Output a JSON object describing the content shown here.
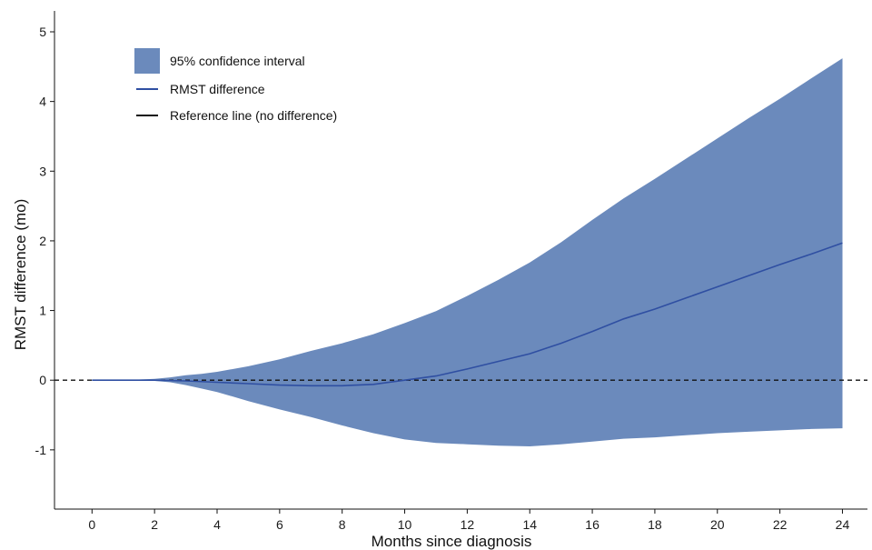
{
  "chart_data": {
    "type": "area",
    "xlabel": "Months since diagnosis",
    "ylabel": "RMST difference (mo)",
    "xlim": [
      -1.2,
      24.8
    ],
    "ylim": [
      -1.85,
      5.3
    ],
    "xticks": [
      0,
      2,
      4,
      6,
      8,
      10,
      12,
      14,
      16,
      18,
      20,
      22,
      24
    ],
    "yticks": [
      -1,
      0,
      1,
      2,
      3,
      4,
      5
    ],
    "grid": false,
    "legend_position": "top-left",
    "legend": [
      {
        "label": "95% confidence interval",
        "kind": "fill"
      },
      {
        "label": "RMST difference",
        "kind": "line"
      },
      {
        "label": "Reference line (no difference)",
        "kind": "dashed"
      }
    ],
    "colors": {
      "ci_fill": "#6b8abc",
      "rmst_line": "#2f4fa2",
      "reference": "#111111"
    },
    "reference_y": 0,
    "series": [
      {
        "name": "95% confidence interval",
        "x": [
          0,
          1,
          2,
          2.5,
          3,
          3.5,
          4,
          5,
          6,
          7,
          8,
          9,
          10,
          11,
          12,
          13,
          14,
          15,
          16,
          17,
          18,
          19,
          20,
          21,
          22,
          23,
          24
        ],
        "upper": [
          0,
          0.0,
          0.02,
          0.04,
          0.07,
          0.09,
          0.12,
          0.2,
          0.3,
          0.42,
          0.53,
          0.66,
          0.82,
          0.99,
          1.21,
          1.44,
          1.69,
          1.98,
          2.3,
          2.61,
          2.89,
          3.18,
          3.47,
          3.76,
          4.04,
          4.33,
          4.62
        ],
        "lower": [
          0,
          0.0,
          -0.01,
          -0.03,
          -0.07,
          -0.12,
          -0.17,
          -0.3,
          -0.42,
          -0.53,
          -0.65,
          -0.76,
          -0.85,
          -0.9,
          -0.92,
          -0.94,
          -0.95,
          -0.92,
          -0.88,
          -0.84,
          -0.82,
          -0.79,
          -0.76,
          -0.74,
          -0.72,
          -0.7,
          -0.69
        ]
      },
      {
        "name": "RMST difference",
        "x": [
          0,
          1,
          2,
          3,
          4,
          5,
          6,
          7,
          8,
          9,
          10,
          11,
          12,
          13,
          14,
          15,
          16,
          17,
          18,
          19,
          20,
          21,
          22,
          23,
          24
        ],
        "values": [
          0,
          0.0,
          0.0,
          -0.01,
          -0.03,
          -0.05,
          -0.07,
          -0.08,
          -0.08,
          -0.06,
          0.0,
          0.06,
          0.16,
          0.27,
          0.38,
          0.53,
          0.7,
          0.88,
          1.02,
          1.18,
          1.34,
          1.5,
          1.66,
          1.81,
          1.97
        ]
      }
    ]
  }
}
